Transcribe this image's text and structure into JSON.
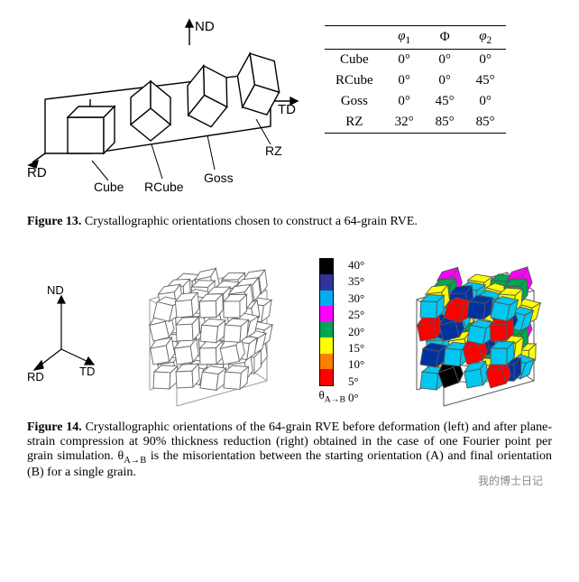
{
  "figure13": {
    "axes": {
      "ND": "ND",
      "TD": "TD",
      "RD": "RD"
    },
    "cube_labels": [
      "Cube",
      "RCube",
      "Goss",
      "RZ"
    ],
    "caption_strong": "Figure 13.",
    "caption_text": "Crystallographic orientations chosen to construct a 64-grain RVE.",
    "line_color": "#000000",
    "line_width": 1.4
  },
  "euler_table": {
    "header": {
      "blank": "",
      "phi1": "φ",
      "phi1_sub": "1",
      "Phi": "Φ",
      "phi2": "φ",
      "phi2_sub": "2"
    },
    "rows": [
      {
        "name": "Cube",
        "phi1": "0°",
        "Phi": "0°",
        "phi2": "0°"
      },
      {
        "name": "RCube",
        "phi1": "0°",
        "Phi": "0°",
        "phi2": "45°"
      },
      {
        "name": "Goss",
        "phi1": "0°",
        "Phi": "45°",
        "phi2": "0°"
      },
      {
        "name": "RZ",
        "phi1": "32°",
        "Phi": "85°",
        "phi2": "85°"
      }
    ],
    "font_size": 15,
    "border_color": "#000000"
  },
  "figure14": {
    "axes": {
      "ND": "ND",
      "TD": "TD",
      "RD": "RD"
    },
    "caption_strong": "Figure 14.",
    "caption_text": "Crystallographic orientations of the 64-grain RVE before deformation (left) and after plane-strain compression at 90% thickness reduction (right) obtained in the case of one Fourier point per grain simulation. θ",
    "caption_sub": "A→B",
    "caption_text2": " is the misorientation between the starting orientation (A) and final orientation (B) for a single grain.",
    "left_grid": {
      "rows": 4,
      "cols": 4,
      "cube_fill": "#ffffff",
      "cube_stroke": "#666666",
      "outline_stroke": "#999999"
    },
    "colorbar": {
      "ticks": [
        "40°",
        "35°",
        "30°",
        "25°",
        "20°",
        "15°",
        "10°",
        "5°",
        "0°"
      ],
      "colors": [
        "#000000",
        "#333399",
        "#00aeef",
        "#ff00ff",
        "#00a651",
        "#ffff00",
        "#ff8000",
        "#ff0000"
      ],
      "below_label": "θ",
      "below_sub": "A→B",
      "font_size": 13
    },
    "right_grid": {
      "rows": 4,
      "cols": 4,
      "palette": [
        "#ff0000",
        "#0033a0",
        "#00c8f0",
        "#ffff00",
        "#00a651",
        "#ff00ff",
        "#000000",
        "#ffffff"
      ],
      "assign": [
        [
          2,
          6,
          2,
          0,
          2,
          3,
          1,
          0,
          0,
          2,
          1,
          0,
          1,
          0,
          2,
          3
        ],
        [
          1,
          2,
          0,
          2,
          3,
          0,
          2,
          1,
          2,
          0,
          1,
          2,
          0,
          1,
          0,
          2
        ],
        [
          0,
          1,
          2,
          0,
          2,
          2,
          0,
          3,
          1,
          0,
          2,
          0,
          2,
          1,
          2,
          0
        ],
        [
          2,
          0,
          1,
          2,
          0,
          2,
          3,
          1,
          2,
          1,
          0,
          2,
          0,
          2,
          1,
          0
        ]
      ],
      "outline_stroke": "#555555"
    }
  },
  "watermark": "我的博士日记"
}
